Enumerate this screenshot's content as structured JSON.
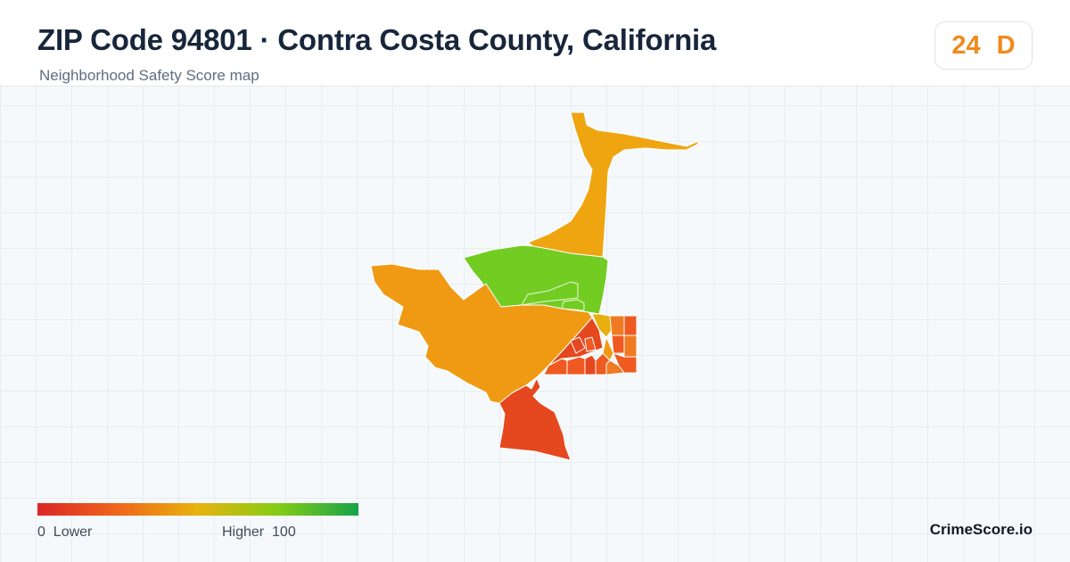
{
  "header": {
    "title": "ZIP Code 94801 · Contra Costa County, California",
    "subtitle": "Neighborhood Safety Score map"
  },
  "score": {
    "value": "24",
    "grade": "D",
    "color": "#f08a1c"
  },
  "legend": {
    "min": "0",
    "min_label": "Lower",
    "max_label": "Higher",
    "max": "100",
    "colors": [
      "#dc2626",
      "#f0661a",
      "#e8b30e",
      "#84cc16",
      "#16a34a"
    ]
  },
  "brand": "CrimeScore.io",
  "map": {
    "colors": {
      "red": "#e5471f",
      "dark_orange": "#ee5a20",
      "orange": "#f07a22",
      "amber": "#ef9a12",
      "yellow_orange": "#eea510",
      "yellow": "#e7b00e",
      "lime": "#72cc22"
    }
  }
}
